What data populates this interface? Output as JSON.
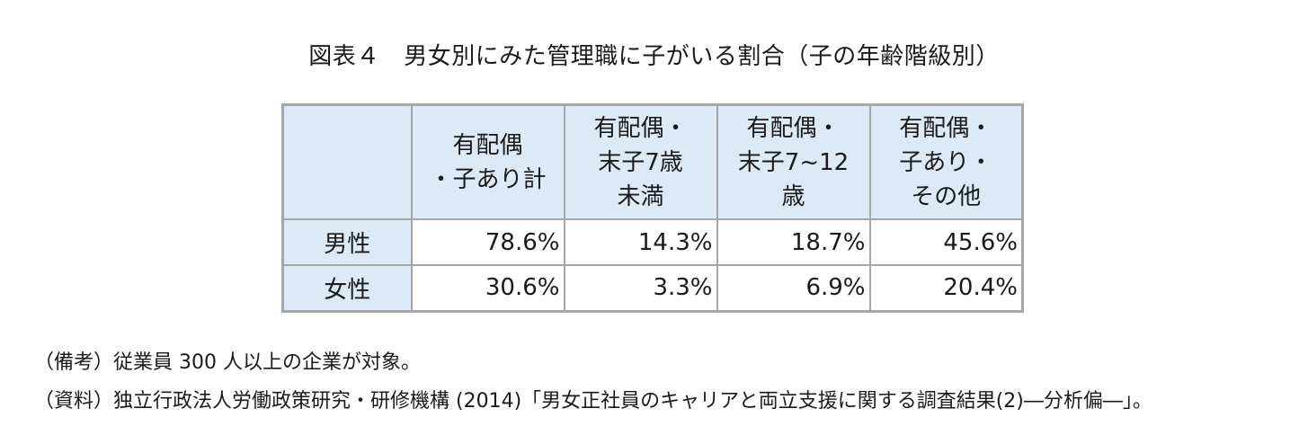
{
  "title": "図表４　男女別にみた管理職に子がいる割合（子の年齢階級別）",
  "table": {
    "corner": "",
    "headers": [
      [
        "有配偶",
        "・子あり計"
      ],
      [
        "有配偶・",
        "末子7歳",
        "未満"
      ],
      [
        "有配偶・",
        "末子7~12",
        "歳"
      ],
      [
        "有配偶・",
        "子あり・",
        "その他"
      ]
    ],
    "rows": [
      {
        "label": "男性",
        "values": [
          "78.6%",
          "14.3%",
          "18.7%",
          "45.6%"
        ]
      },
      {
        "label": "女性",
        "values": [
          "30.6%",
          "3.3%",
          "6.9%",
          "20.4%"
        ]
      }
    ]
  },
  "notes": {
    "note1": "（備考）従業員 300 人以上の企業が対象。",
    "note2": "（資料）独立行政法人労働政策研究・研修機構 (2014)「男女正社員のキャリアと両立支援に関する調査結果(2)―分析偏―」。"
  }
}
